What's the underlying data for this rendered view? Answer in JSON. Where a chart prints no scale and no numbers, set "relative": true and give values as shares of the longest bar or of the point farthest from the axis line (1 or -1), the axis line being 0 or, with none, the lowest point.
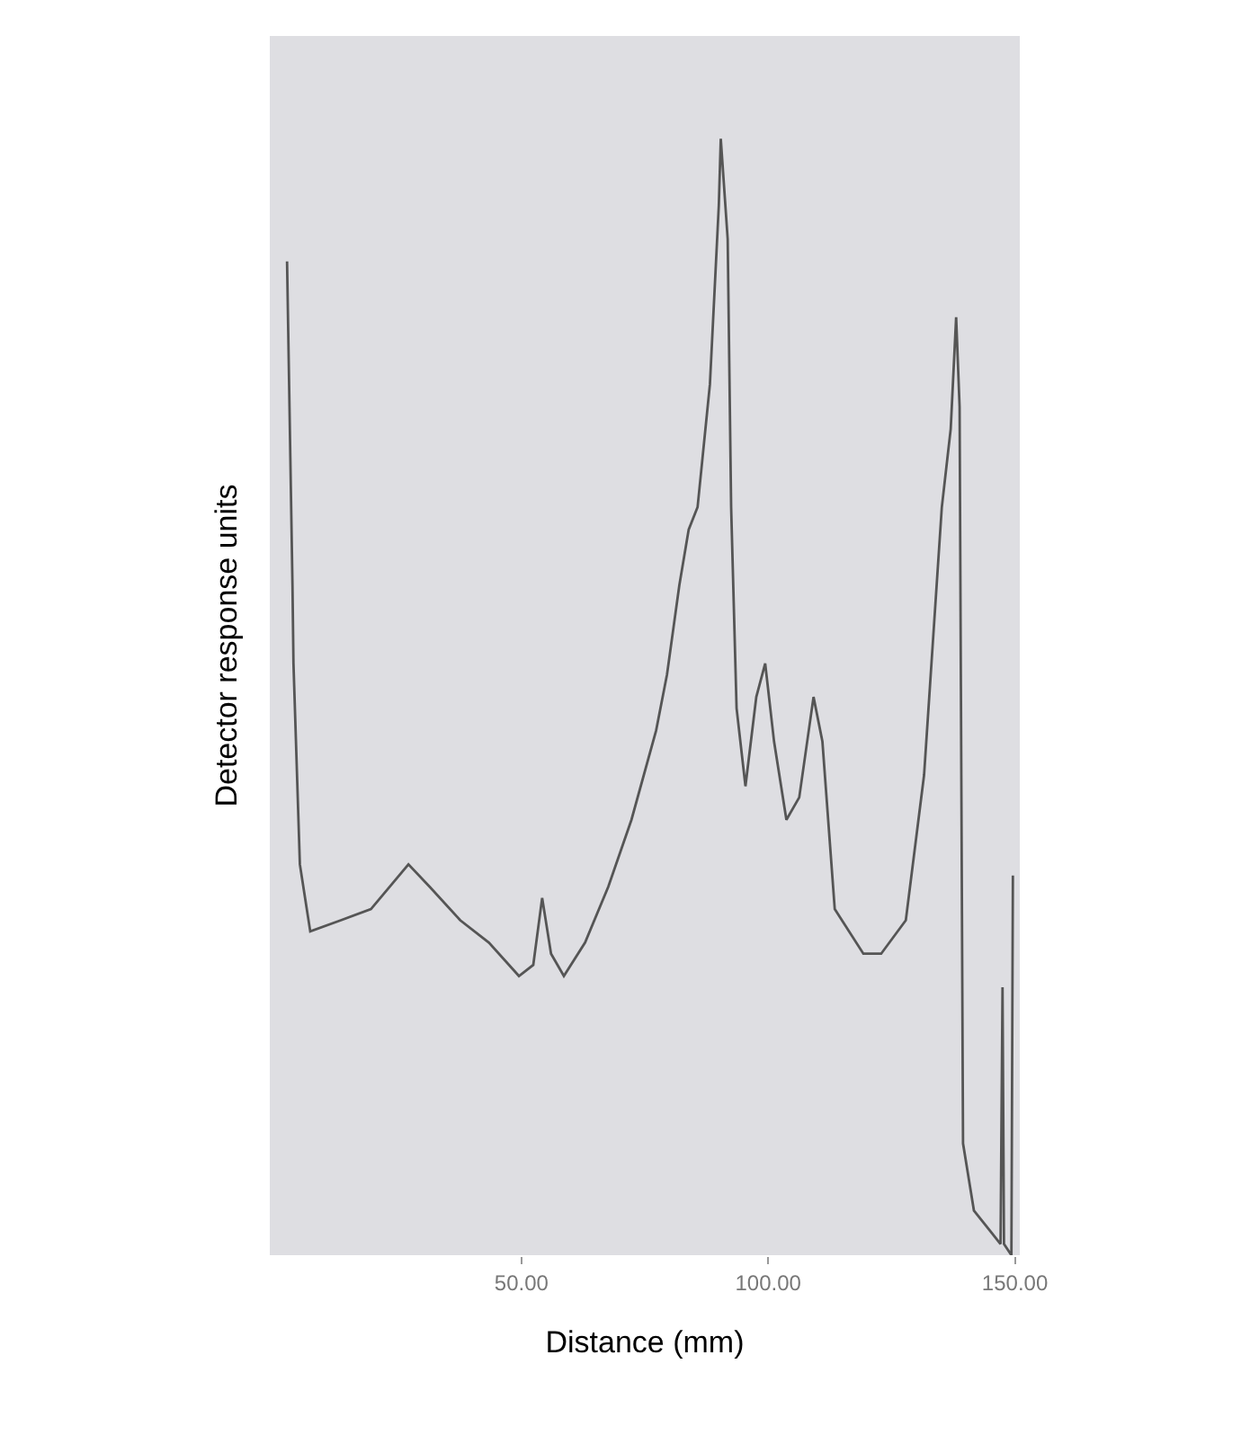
{
  "chart_data": {
    "type": "line",
    "xlabel": "Distance (mm)",
    "ylabel": "Detector response units",
    "relative": true,
    "x": [
      2.5,
      3.6,
      3.8,
      5.1,
      7.2,
      13.4,
      19.5,
      27.1,
      31.4,
      37.6,
      43.4,
      49.5,
      52.4,
      54.2,
      56.0,
      58.6,
      62.9,
      67.6,
      72.3,
      77.3,
      79.5,
      82.0,
      83.9,
      85.7,
      88.2,
      90.0,
      90.4,
      91.8,
      92.5,
      93.6,
      95.4,
      97.6,
      99.4,
      101.2,
      103.7,
      106.3,
      109.2,
      111.0,
      113.5,
      119.3,
      122.9,
      127.9,
      131.6,
      135.2,
      137.0,
      138.1,
      138.8,
      139.5,
      141.7,
      145.3,
      147.1,
      147.5,
      147.8,
      149.3,
      149.6
    ],
    "series": [
      {
        "color": "#555555",
        "values": [
          0.89,
          0.6,
          0.53,
          0.35,
          0.29,
          0.3,
          0.31,
          0.35,
          0.33,
          0.3,
          0.28,
          0.25,
          0.26,
          0.32,
          0.27,
          0.25,
          0.28,
          0.33,
          0.39,
          0.47,
          0.52,
          0.6,
          0.65,
          0.67,
          0.78,
          0.94,
          1.0,
          0.91,
          0.67,
          0.49,
          0.42,
          0.5,
          0.53,
          0.46,
          0.39,
          0.41,
          0.5,
          0.46,
          0.31,
          0.27,
          0.27,
          0.3,
          0.43,
          0.67,
          0.74,
          0.84,
          0.76,
          0.1,
          0.04,
          0.02,
          0.01,
          0.24,
          0.01,
          0,
          0.34
        ]
      }
    ],
    "xlim": [
      -1,
      151
    ],
    "xticks": [
      {
        "value": 50,
        "label": "50.00"
      },
      {
        "value": 100,
        "label": "100.00"
      },
      {
        "value": 150,
        "label": "150.00"
      }
    ],
    "marker": "none",
    "line_style": "solid"
  }
}
